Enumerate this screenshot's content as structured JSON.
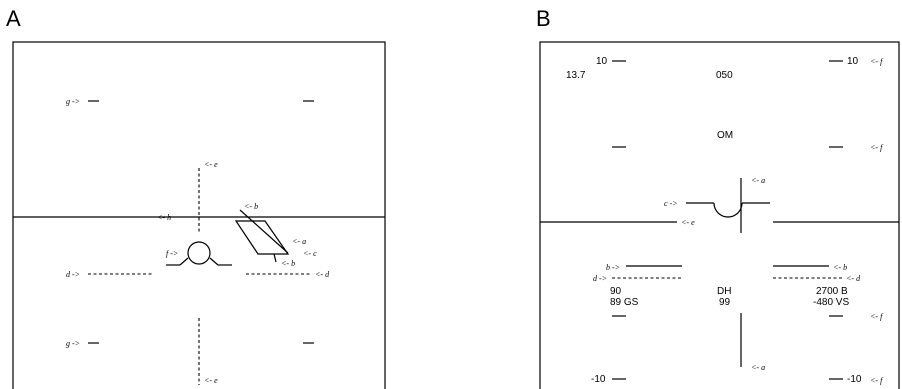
{
  "panels": {
    "a": {
      "letter": "A",
      "labels": {
        "g_upper": "g ->",
        "g_lower": "g ->",
        "e_upper": "<- e",
        "e_lower": "<- e",
        "h": "<- h",
        "f": "f ->",
        "d_left": "d ->",
        "d_right": "<- d",
        "b_upper": "<- b",
        "a": "<- a",
        "c": "<- c",
        "b_lower": "<- b"
      }
    },
    "b": {
      "letter": "B",
      "pitch_labels": {
        "top_left": "10",
        "top_right": "10",
        "bottom_left": "-10",
        "bottom_right": "-10"
      },
      "readouts": {
        "top_left_value": "13.7",
        "heading": "050",
        "marker": "OM",
        "left_speed": "90",
        "left_gs": "89 GS",
        "center_dh": "DH",
        "center_value": "99",
        "right_alt": "2700 B",
        "right_vs": "-480 VS"
      },
      "labels": {
        "f_top": "<- f",
        "f_upper_mid": "<- f",
        "f_lower_mid": "<- f",
        "f_bottom": "<- f",
        "a_upper": "<- a",
        "a_lower": "<- a",
        "c": "c ->",
        "e": "<- e",
        "b_left": "b ->",
        "d_left": "d ->",
        "b_right": "<- b",
        "d_right": "<- d"
      }
    }
  }
}
